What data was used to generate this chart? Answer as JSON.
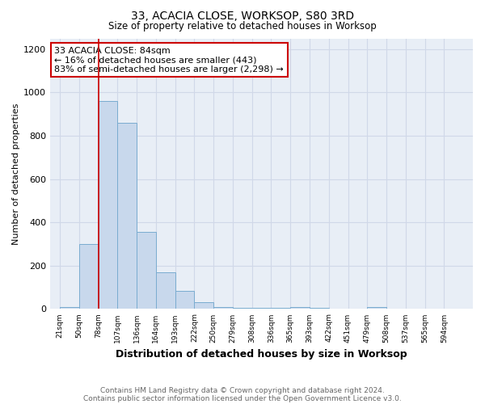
{
  "title": "33, ACACIA CLOSE, WORKSOP, S80 3RD",
  "subtitle": "Size of property relative to detached houses in Worksop",
  "xlabel": "Distribution of detached houses by size in Worksop",
  "ylabel": "Number of detached properties",
  "footnote1": "Contains HM Land Registry data © Crown copyright and database right 2024.",
  "footnote2": "Contains public sector information licensed under the Open Government Licence v3.0.",
  "bin_labels": [
    "21sqm",
    "50sqm",
    "78sqm",
    "107sqm",
    "136sqm",
    "164sqm",
    "193sqm",
    "222sqm",
    "250sqm",
    "279sqm",
    "308sqm",
    "336sqm",
    "365sqm",
    "393sqm",
    "422sqm",
    "451sqm",
    "479sqm",
    "508sqm",
    "537sqm",
    "565sqm",
    "594sqm"
  ],
  "bar_values": [
    10,
    300,
    960,
    860,
    355,
    170,
    85,
    30,
    10,
    5,
    5,
    5,
    10,
    5,
    0,
    0,
    10,
    0,
    0,
    0,
    0
  ],
  "bar_color": "#c8d8ec",
  "bar_edge_color": "#7aacd0",
  "property_line_color": "#cc0000",
  "annotation_text": "33 ACACIA CLOSE: 84sqm\n← 16% of detached houses are smaller (443)\n83% of semi-detached houses are larger (2,298) →",
  "annotation_box_color": "#ffffff",
  "annotation_box_edge_color": "#cc0000",
  "ylim": [
    0,
    1250
  ],
  "yticks": [
    0,
    200,
    400,
    600,
    800,
    1000,
    1200
  ],
  "grid_color": "#d0d8e8",
  "background_color": "#e8eef6",
  "plot_bg_color": "#e8eef6"
}
